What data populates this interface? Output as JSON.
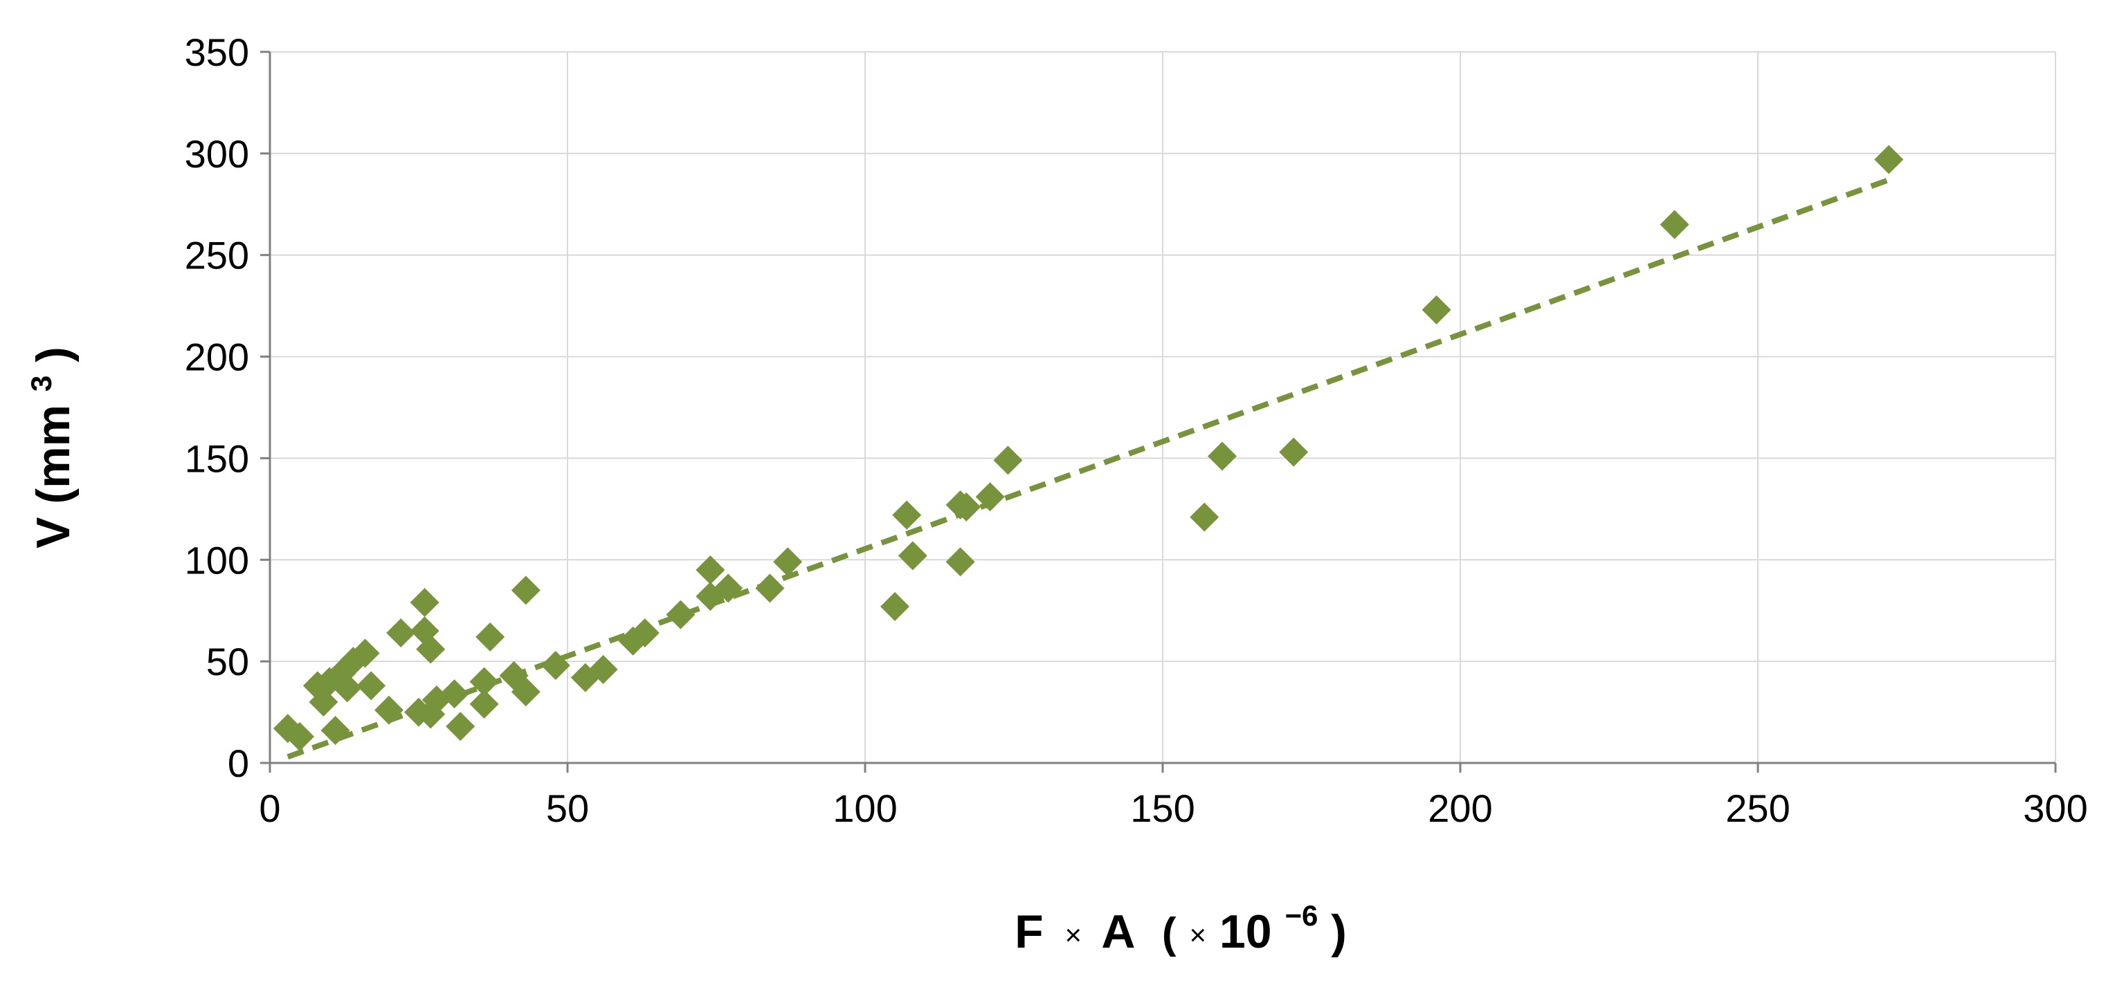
{
  "chart_data": {
    "type": "scatter",
    "title": "",
    "xlabel": {
      "main": "F",
      "times": "×",
      "main2": "A",
      "scale_open": "(",
      "scale_times": "×",
      "scale_base": "10",
      "scale_exp": "−6",
      "scale_close": ")"
    },
    "ylabel": {
      "main": "V (mm",
      "sup": "3",
      "close": ")"
    },
    "xlim": [
      0,
      300
    ],
    "ylim": [
      0,
      350
    ],
    "x_ticks": [
      0,
      50,
      100,
      150,
      200,
      250,
      300
    ],
    "y_ticks": [
      0,
      50,
      100,
      150,
      200,
      250,
      300,
      350
    ],
    "x_tick_labels": [
      "0",
      "50",
      "100",
      "150",
      "200",
      "250",
      "300"
    ],
    "y_tick_labels": [
      "0",
      "50",
      "100",
      "150",
      "200",
      "250",
      "300",
      "350"
    ],
    "grid": true,
    "legend": "none",
    "marker": "diamond",
    "colors": {
      "marker": "#77933C",
      "trendline": "#77933C",
      "grid": "#D9D9D9",
      "axis": "#808080"
    },
    "series": [
      {
        "points": [
          [
            3,
            17
          ],
          [
            5,
            13
          ],
          [
            8,
            38
          ],
          [
            9,
            30
          ],
          [
            10,
            40
          ],
          [
            11,
            16
          ],
          [
            12,
            44
          ],
          [
            13,
            37
          ],
          [
            14,
            50
          ],
          [
            16,
            54
          ],
          [
            17,
            38
          ],
          [
            20,
            26
          ],
          [
            22,
            64
          ],
          [
            25,
            25
          ],
          [
            26,
            79
          ],
          [
            26,
            65
          ],
          [
            27,
            56
          ],
          [
            27,
            24
          ],
          [
            28,
            31
          ],
          [
            31,
            34
          ],
          [
            32,
            18
          ],
          [
            36,
            29
          ],
          [
            36,
            40
          ],
          [
            37,
            62
          ],
          [
            41,
            43
          ],
          [
            43,
            35
          ],
          [
            43,
            85
          ],
          [
            48,
            48
          ],
          [
            53,
            42
          ],
          [
            56,
            46
          ],
          [
            61,
            60
          ],
          [
            63,
            64
          ],
          [
            69,
            73
          ],
          [
            74,
            82
          ],
          [
            74,
            95
          ],
          [
            77,
            86
          ],
          [
            84,
            86
          ],
          [
            87,
            99
          ],
          [
            105,
            77
          ],
          [
            107,
            122
          ],
          [
            108,
            102
          ],
          [
            116,
            99
          ],
          [
            116,
            127
          ],
          [
            117,
            126
          ],
          [
            121,
            131
          ],
          [
            124,
            149
          ],
          [
            157,
            121
          ],
          [
            160,
            151
          ],
          [
            172,
            153
          ],
          [
            196,
            223
          ],
          [
            236,
            265
          ],
          [
            272,
            297
          ]
        ]
      }
    ],
    "trendline": {
      "style": "dashed",
      "x_range": [
        3,
        272
      ],
      "y_start": 3,
      "y_end": 287
    }
  }
}
